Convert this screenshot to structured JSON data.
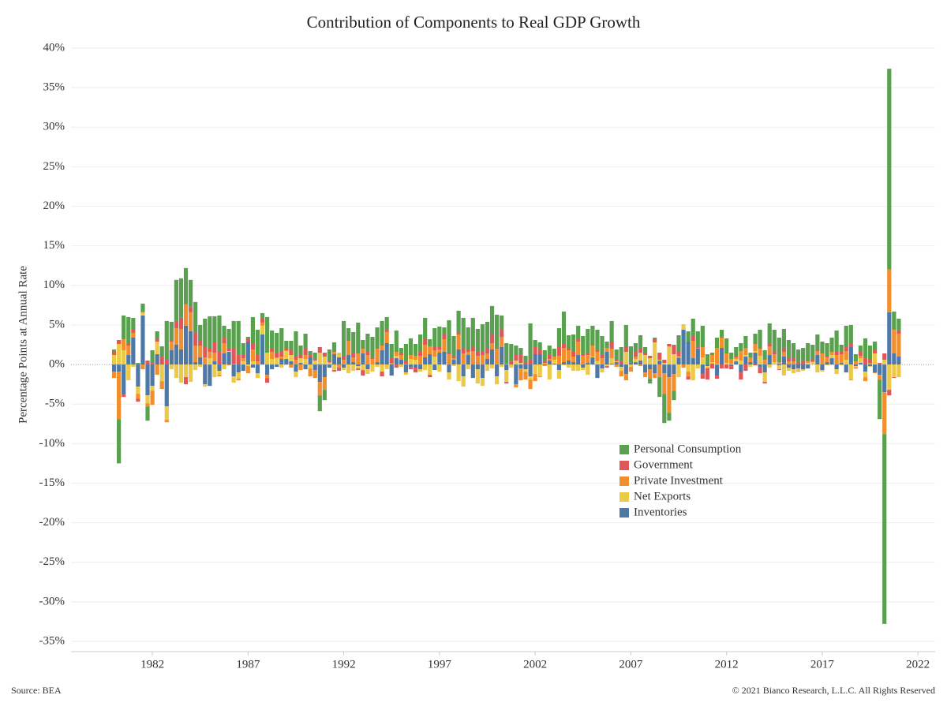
{
  "chart_data": {
    "type": "stacked_bar",
    "title": "Contribution of Components to Real GDP Growth",
    "y_label": "Percentage Points at Annual Rate",
    "source": "Source: BEA",
    "copyright": "© 2021 Bianco Research, L.L.C. All Rights Reserved",
    "xlim": [
      1977.75,
      2022.9
    ],
    "xticks": [
      1982,
      1987,
      1992,
      1997,
      2002,
      2007,
      2012,
      2017,
      2022
    ],
    "ylim": [
      -36.3,
      41.3
    ],
    "yticks": [
      {
        "value": 40,
        "label": "40%"
      },
      {
        "value": 35,
        "label": "35%"
      },
      {
        "value": 30,
        "label": "30%"
      },
      {
        "value": 25,
        "label": "25%"
      },
      {
        "value": 20,
        "label": "20%"
      },
      {
        "value": 15,
        "label": "15%"
      },
      {
        "value": 10,
        "label": "10%"
      },
      {
        "value": 5,
        "label": "5%"
      },
      {
        "value": 0,
        "label": "0%"
      },
      {
        "value": -5,
        "label": "-5%"
      },
      {
        "value": -10,
        "label": "-10%"
      },
      {
        "value": -15,
        "label": "-15%"
      },
      {
        "value": -20,
        "label": "-20%"
      },
      {
        "value": -25,
        "label": "-25%"
      },
      {
        "value": -30,
        "label": "-30%"
      },
      {
        "value": -35,
        "label": "-35%"
      }
    ],
    "grid": true,
    "x": [
      1980,
      1980.25,
      1980.5,
      1980.75,
      1981,
      1981.25,
      1981.5,
      1981.75,
      1982,
      1982.25,
      1982.5,
      1982.75,
      1983,
      1983.25,
      1983.5,
      1983.75,
      1984,
      1984.25,
      1984.5,
      1984.75,
      1985,
      1985.25,
      1985.5,
      1985.75,
      1986,
      1986.25,
      1986.5,
      1986.75,
      1987,
      1987.25,
      1987.5,
      1987.75,
      1988,
      1988.25,
      1988.5,
      1988.75,
      1989,
      1989.25,
      1989.5,
      1989.75,
      1990,
      1990.25,
      1990.5,
      1990.75,
      1991,
      1991.25,
      1991.5,
      1991.75,
      1992,
      1992.25,
      1992.5,
      1992.75,
      1993,
      1993.25,
      1993.5,
      1993.75,
      1994,
      1994.25,
      1994.5,
      1994.75,
      1995,
      1995.25,
      1995.5,
      1995.75,
      1996,
      1996.25,
      1996.5,
      1996.75,
      1997,
      1997.25,
      1997.5,
      1997.75,
      1998,
      1998.25,
      1998.5,
      1998.75,
      1999,
      1999.25,
      1999.5,
      1999.75,
      2000,
      2000.25,
      2000.5,
      2000.75,
      2001,
      2001.25,
      2001.5,
      2001.75,
      2002,
      2002.25,
      2002.5,
      2002.75,
      2003,
      2003.25,
      2003.5,
      2003.75,
      2004,
      2004.25,
      2004.5,
      2004.75,
      2005,
      2005.25,
      2005.5,
      2005.75,
      2006,
      2006.25,
      2006.5,
      2006.75,
      2007,
      2007.25,
      2007.5,
      2007.75,
      2008,
      2008.25,
      2008.5,
      2008.75,
      2009,
      2009.25,
      2009.5,
      2009.75,
      2010,
      2010.25,
      2010.5,
      2010.75,
      2011,
      2011.25,
      2011.5,
      2011.75,
      2012,
      2012.25,
      2012.5,
      2012.75,
      2013,
      2013.25,
      2013.5,
      2013.75,
      2014,
      2014.25,
      2014.5,
      2014.75,
      2015,
      2015.25,
      2015.5,
      2015.75,
      2016,
      2016.25,
      2016.5,
      2016.75,
      2017,
      2017.25,
      2017.5,
      2017.75,
      2018,
      2018.25,
      2018.5,
      2018.75,
      2019,
      2019.25,
      2019.5,
      2019.75,
      2020,
      2020.25,
      2020.5,
      2020.75,
      2021
    ],
    "series": [
      {
        "name": "Personal Consumption",
        "color": "#59a14f",
        "values": [
          0.3,
          -5.6,
          3.0,
          3.4,
          1.5,
          0.2,
          1.0,
          -1.8,
          1.6,
          0.9,
          1.3,
          4.8,
          2.4,
          5.2,
          5.0,
          4.6,
          3.5,
          3.9,
          1.9,
          3.6,
          4.1,
          3.2,
          4.6,
          1.5,
          2.5,
          3.5,
          4.3,
          1.4,
          0.3,
          3.4,
          3.1,
          0.6,
          4.5,
          2.3,
          2.5,
          2.9,
          0.9,
          1.1,
          3.1,
          1.2,
          1.8,
          0.4,
          0.8,
          -2.0,
          -1.3,
          1.4,
          1.2,
          0.0,
          4.4,
          1.5,
          2.6,
          3.9,
          1.1,
          2.2,
          2.6,
          2.6,
          3.1,
          1.6,
          1.8,
          2.7,
          0.7,
          2.2,
          2.1,
          1.5,
          2.1,
          2.7,
          0.9,
          2.4,
          2.6,
          0.9,
          4.1,
          2.5,
          2.8,
          3.8,
          2.8,
          3.6,
          2.8,
          3.5,
          3.3,
          3.5,
          4.2,
          1.8,
          2.6,
          2.2,
          1.1,
          0.9,
          0.8,
          4.5,
          0.9,
          1.0,
          1.3,
          1.1,
          0.9,
          2.4,
          4.1,
          1.6,
          2.2,
          1.6,
          2.3,
          3.0,
          2.4,
          2.5,
          2.3,
          0.8,
          2.7,
          1.3,
          1.8,
          2.8,
          2.0,
          1.0,
          1.6,
          0.7,
          -0.6,
          0.1,
          -2.5,
          -3.7,
          -1.0,
          -1.2,
          2.0,
          0.0,
          1.3,
          2.2,
          1.9,
          2.7,
          1.3,
          0.3,
          1.3,
          1.0,
          1.9,
          0.8,
          1.2,
          1.0,
          1.5,
          0.6,
          1.3,
          2.4,
          1.2,
          2.6,
          2.8,
          3.1,
          2.4,
          2.2,
          1.9,
          1.6,
          1.6,
          2.2,
          1.8,
          1.9,
          1.5,
          1.7,
          1.7,
          2.6,
          0.9,
          2.7,
          2.4,
          0.9,
          0.8,
          2.5,
          1.8,
          1.1,
          -5.0,
          -24.0,
          25.4,
          2.3,
          1.5
        ]
      },
      {
        "name": "Government",
        "color": "#e15759",
        "values": [
          0.4,
          0.5,
          -0.3,
          0.2,
          0.4,
          -0.4,
          0.1,
          0.5,
          0.2,
          0.4,
          0.9,
          0.7,
          0.1,
          0.9,
          1.4,
          -0.9,
          0.6,
          1.6,
          0.7,
          1.3,
          0.4,
          1.4,
          1.6,
          0.7,
          0.3,
          1.9,
          1.2,
          0.5,
          0.3,
          0.7,
          0.9,
          0.6,
          -0.6,
          0.4,
          0.6,
          0.7,
          0.3,
          0.7,
          0.5,
          0.4,
          0.9,
          0.4,
          0.2,
          0.7,
          0.5,
          0.2,
          -0.2,
          -0.4,
          0.5,
          0.1,
          0.6,
          -0.2,
          -0.7,
          0.5,
          0.2,
          0.1,
          -0.6,
          0.3,
          0.6,
          -0.4,
          0.2,
          0.3,
          -0.3,
          -0.6,
          0.6,
          0.7,
          -0.3,
          0.4,
          0.3,
          0.6,
          0.2,
          0.3,
          0.2,
          0.7,
          0.3,
          0.6,
          0.6,
          0.4,
          0.7,
          1.2,
          0.1,
          0.9,
          -0.2,
          0.3,
          0.8,
          1.0,
          0.3,
          0.7,
          0.9,
          0.5,
          0.3,
          0.6,
          0.1,
          1.1,
          0.5,
          0.3,
          0.6,
          0.4,
          0.2,
          0.3,
          0.1,
          0.3,
          0.5,
          -0.2,
          0.8,
          0.2,
          0.4,
          0.6,
          0.1,
          0.7,
          0.6,
          0.3,
          0.3,
          0.5,
          0.9,
          0.4,
          0.3,
          1.2,
          0.6,
          0.0,
          -0.4,
          0.6,
          0.2,
          -0.6,
          -1.4,
          -0.5,
          -0.4,
          -0.5,
          -0.5,
          -0.4,
          0.1,
          -0.9,
          -0.8,
          0.0,
          -0.1,
          -0.8,
          -0.2,
          0.3,
          0.3,
          -0.1,
          0.5,
          0.5,
          0.4,
          0.3,
          0.5,
          0.1,
          0.3,
          0.2,
          0.0,
          0.1,
          0.1,
          0.5,
          0.3,
          0.5,
          0.4,
          -0.1,
          0.5,
          0.8,
          0.4,
          0.4,
          0.2,
          0.8,
          -0.7,
          -0.1,
          0.4
        ]
      },
      {
        "name": "Private Investment",
        "color": "#f28e2b",
        "values": [
          -0.8,
          -6.0,
          1.4,
          1.2,
          0.6,
          -0.6,
          -0.6,
          -0.4,
          -1.8,
          -1.3,
          -1.0,
          -0.3,
          1.1,
          2.1,
          2.6,
          2.7,
          2.4,
          2.1,
          1.5,
          0.9,
          0.8,
          1.1,
          -0.2,
          1.3,
          -0.1,
          0.1,
          -0.2,
          0.4,
          -0.9,
          1.5,
          0.4,
          0.4,
          -0.4,
          0.9,
          0.1,
          0.3,
          0.1,
          -0.4,
          0.6,
          -0.7,
          0.5,
          -1.0,
          -1.0,
          -1.7,
          -1.6,
          0.1,
          0.3,
          -0.4,
          0.6,
          1.8,
          0.6,
          1.4,
          0.6,
          1.2,
          0.7,
          1.7,
          0.6,
          1.4,
          0.2,
          0.5,
          0.6,
          0.1,
          0.5,
          0.5,
          1.1,
          1.6,
          1.0,
          0.8,
          0.4,
          1.6,
          1.3,
          0.2,
          1.9,
          1.4,
          0.4,
          1.7,
          1.1,
          1.2,
          0.7,
          0.8,
          2.0,
          1.3,
          0.1,
          0.0,
          -0.4,
          -1.5,
          -1.0,
          -1.2,
          -0.9,
          -0.1,
          -0.2,
          0.2,
          0.4,
          1.1,
          1.8,
          1.3,
          0.7,
          1.7,
          1.1,
          1.0,
          1.4,
          1.2,
          0.8,
          0.5,
          1.2,
          -0.3,
          -0.7,
          -0.8,
          -0.6,
          0.3,
          -0.2,
          -0.6,
          -1.2,
          -0.6,
          -1.6,
          -2.6,
          -4.5,
          -2.1,
          0.3,
          -0.4,
          -0.6,
          2.2,
          0.1,
          1.3,
          -0.1,
          0.9,
          2.0,
          1.3,
          1.2,
          0.6,
          0.2,
          1.2,
          0.9,
          0.6,
          0.9,
          0.9,
          0.6,
          1.1,
          1.0,
          0.3,
          0.6,
          0.4,
          0.4,
          -0.1,
          0.0,
          0.2,
          0.1,
          0.5,
          1.4,
          0.6,
          0.4,
          1.2,
          1.1,
          1.1,
          -0.1,
          0.4,
          0.3,
          -0.5,
          0.2,
          -0.1,
          -0.6,
          -5.3,
          5.4,
          3.0,
          2.9
        ]
      },
      {
        "name": "Net Exports",
        "color": "#edc948",
        "values": [
          1.2,
          2.6,
          1.8,
          -2.0,
          -0.3,
          -0.9,
          0.4,
          -1.0,
          -0.6,
          1.6,
          -2.1,
          -1.7,
          -0.6,
          -1.7,
          -2.3,
          -1.6,
          -2.2,
          -0.7,
          -0.3,
          -0.3,
          0.8,
          -1.6,
          -0.5,
          -0.6,
          0.1,
          -0.8,
          -0.8,
          0.4,
          -0.2,
          0.4,
          -0.6,
          1.1,
          1.5,
          0.7,
          0.8,
          -0.4,
          1.0,
          0.8,
          -0.7,
          0.6,
          0.7,
          -0.5,
          0.5,
          1.5,
          1.0,
          0.2,
          -0.7,
          0.6,
          -0.3,
          -1.1,
          -0.8,
          -0.3,
          -0.7,
          -0.6,
          -0.9,
          -0.3,
          -0.9,
          -0.6,
          0.0,
          0.3,
          -0.3,
          -0.3,
          0.7,
          0.6,
          -0.3,
          -0.7,
          -1.3,
          1.0,
          -0.9,
          0.0,
          -0.9,
          -0.2,
          -2.1,
          -1.3,
          -0.6,
          0.0,
          -1.8,
          -1.0,
          -0.8,
          -0.5,
          -1.0,
          -0.3,
          -1.5,
          -0.4,
          0.5,
          0.2,
          -0.3,
          -0.4,
          -1.2,
          -1.5,
          0.1,
          -1.9,
          0.5,
          -1.1,
          -0.1,
          -0.4,
          -0.8,
          -0.8,
          -0.3,
          -1.3,
          0.1,
          0.4,
          -0.5,
          -0.2,
          0.7,
          0.1,
          -0.5,
          1.6,
          -0.3,
          0.4,
          1.0,
          1.2,
          0.8,
          2.8,
          0.1,
          0.2,
          2.3,
          1.3,
          -1.6,
          0.7,
          -0.9,
          -2.0,
          -0.5,
          0.9,
          -0.2,
          0.2,
          0.1,
          0.0,
          0.2,
          0.1,
          0.3,
          0.5,
          0.2,
          -0.3,
          0.2,
          1.1,
          -1.2,
          -0.4,
          0.3,
          -0.5,
          -1.4,
          -0.4,
          -0.5,
          -0.3,
          -0.2,
          0.2,
          0.3,
          -1.0,
          -0.2,
          -0.1,
          0.4,
          -0.6,
          -0.1,
          0.6,
          -1.9,
          -0.2,
          0.6,
          -0.7,
          -0.1,
          1.4,
          0.0,
          0.6,
          -3.2,
          -1.6,
          -1.6
        ]
      },
      {
        "name": "Inventories",
        "color": "#4e79a7",
        "values": [
          -0.9,
          -0.9,
          -3.8,
          1.2,
          3.4,
          -2.8,
          6.2,
          -3.9,
          -2.7,
          1.3,
          0.1,
          -5.3,
          1.8,
          2.5,
          1.9,
          4.9,
          4.2,
          0.3,
          0.9,
          -2.5,
          -2.7,
          0.4,
          -0.8,
          1.4,
          1.6,
          -1.5,
          -1.0,
          -0.8,
          2.9,
          -0.4,
          -1.1,
          3.8,
          -1.3,
          -0.6,
          -0.3,
          0.7,
          0.7,
          0.4,
          -0.9,
          0.2,
          -0.6,
          0.9,
          -0.7,
          -2.2,
          -1.6,
          -0.4,
          1.3,
          0.9,
          -0.4,
          1.2,
          0.3,
          -0.2,
          1.4,
          -0.6,
          0.0,
          0.3,
          1.8,
          2.7,
          -1.4,
          0.8,
          0.6,
          -1.0,
          -0.3,
          -0.4,
          -0.6,
          0.9,
          1.3,
          -0.7,
          1.5,
          1.6,
          -1.0,
          0.6,
          1.9,
          -1.5,
          1.2,
          -1.7,
          -0.6,
          -1.7,
          0.7,
          1.9,
          -1.5,
          2.2,
          -0.7,
          0.1,
          -2.5,
          -0.5,
          -0.6,
          -1.5,
          1.3,
          1.3,
          0.1,
          0.5,
          0.1,
          -0.7,
          0.3,
          0.5,
          0.3,
          1.2,
          -0.4,
          0.2,
          0.9,
          -1.7,
          -0.5,
          1.6,
          0.1,
          0.3,
          -0.3,
          -1.2,
          0.2,
          0.3,
          0.5,
          -1.0,
          -0.6,
          -1.1,
          0.5,
          -1.1,
          -1.6,
          -1.2,
          0.8,
          4.4,
          2.9,
          0.8,
          2.0,
          -1.2,
          -0.2,
          0.1,
          -1.4,
          2.1,
          0.0,
          -0.2,
          0.4,
          -1.0,
          1.0,
          0.3,
          1.5,
          -0.3,
          -1.0,
          1.2,
          0.0,
          -0.1,
          1.0,
          -0.4,
          -0.6,
          -0.5,
          -0.6,
          -0.5,
          0.0,
          1.2,
          -0.7,
          0.3,
          0.8,
          -0.6,
          0.2,
          -1.0,
          2.2,
          -0.2,
          0.2,
          -0.9,
          -0.2,
          -1.0,
          -1.3,
          -3.5,
          6.6,
          1.4,
          1.0
        ]
      }
    ]
  }
}
